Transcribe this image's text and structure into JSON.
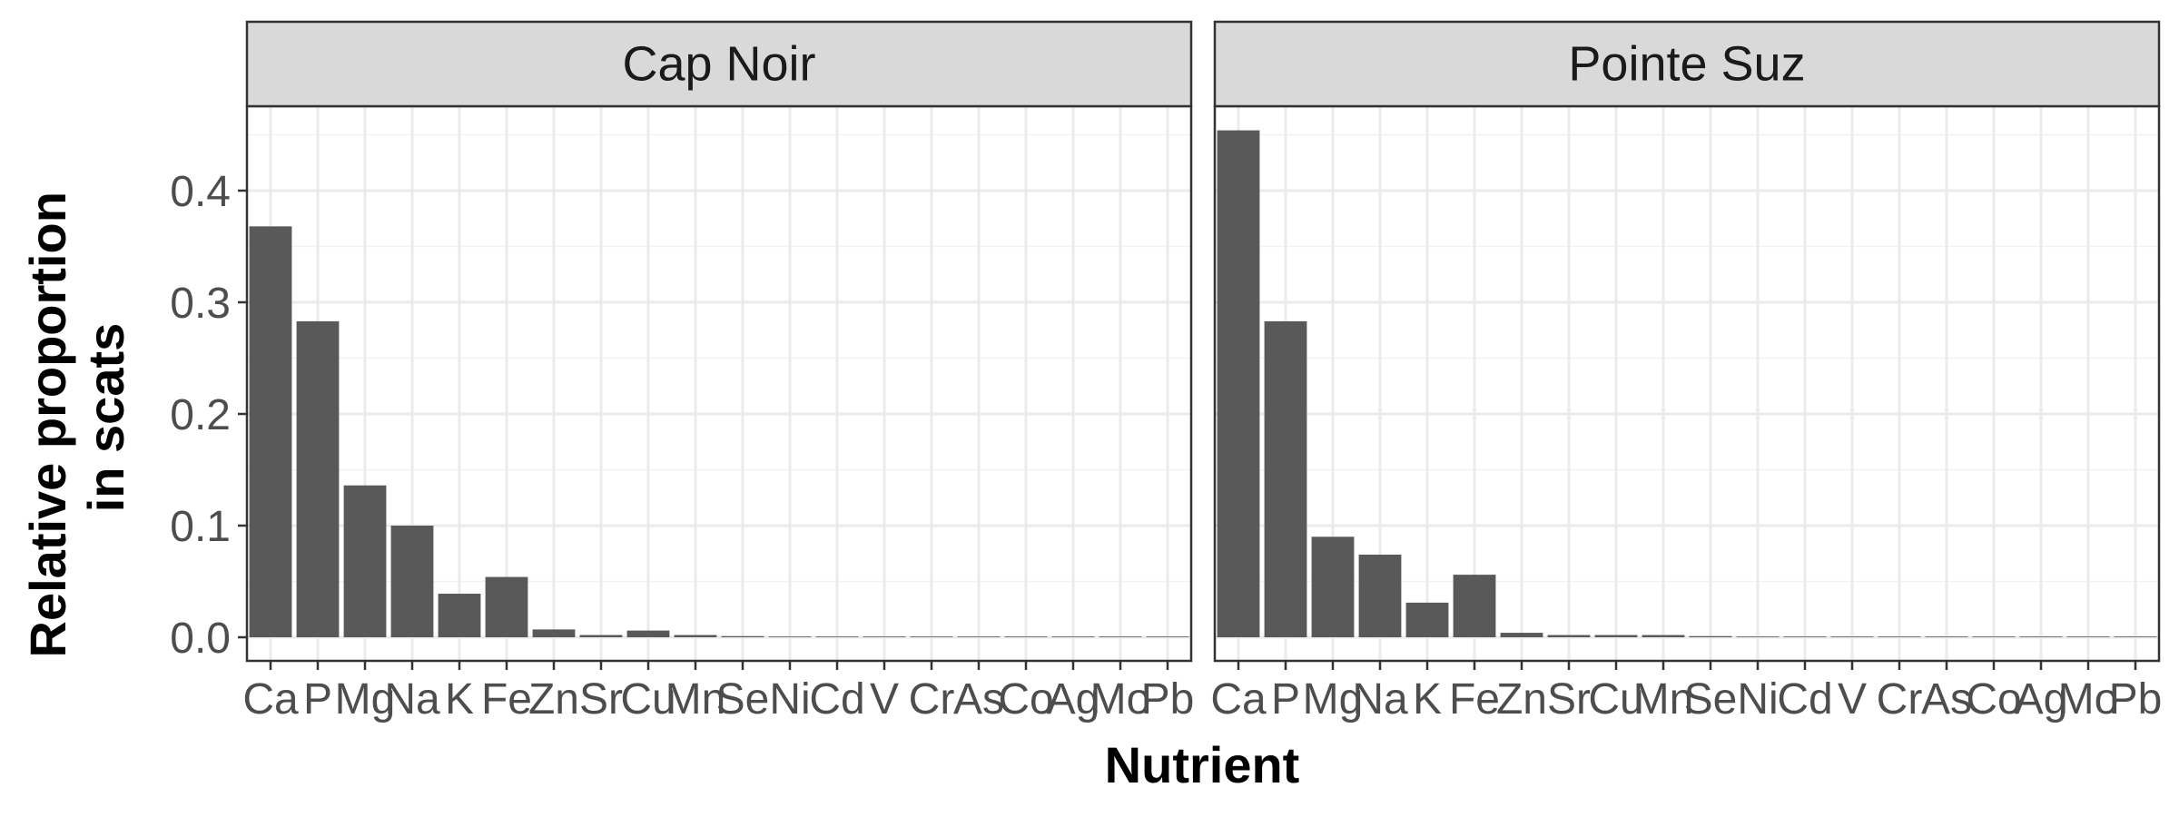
{
  "chart_data": {
    "type": "bar",
    "facet_variable": "site",
    "ylabel_lines": [
      "Relative proportion",
      "in scats"
    ],
    "xlabel": "Nutrient",
    "ylim": [
      0,
      0.48
    ],
    "yticks": [
      0.0,
      0.1,
      0.2,
      0.3,
      0.4
    ],
    "ytick_labels": [
      "0.0",
      "0.1",
      "0.2",
      "0.3",
      "0.4"
    ],
    "grid": true,
    "categories": [
      "Ca",
      "P",
      "Mg",
      "Na",
      "K",
      "Fe",
      "Zn",
      "Sr",
      "Cu",
      "Mn",
      "Se",
      "Ni",
      "Cd",
      "V",
      "Cr",
      "As",
      "Co",
      "Ag",
      "Mo",
      "Pb"
    ],
    "panels": [
      {
        "name": "Cap Noir",
        "values": [
          0.368,
          0.283,
          0.136,
          0.1,
          0.039,
          0.054,
          0.007,
          0.002,
          0.006,
          0.002,
          0.001,
          0.0005,
          0.0002,
          0.0002,
          0.0001,
          0.0001,
          5e-05,
          3e-05,
          2e-05,
          2e-05
        ]
      },
      {
        "name": "Pointe Suz",
        "values": [
          0.454,
          0.283,
          0.09,
          0.074,
          0.031,
          0.056,
          0.004,
          0.002,
          0.002,
          0.002,
          0.001,
          0.0005,
          0.0002,
          0.0002,
          0.0001,
          0.0001,
          5e-05,
          3e-05,
          2e-05,
          2e-05
        ]
      }
    ]
  }
}
